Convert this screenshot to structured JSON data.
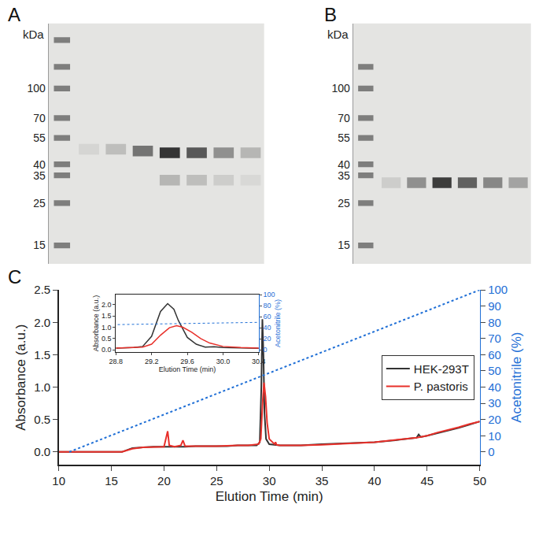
{
  "chart_data": [
    {
      "panel": "A",
      "type": "gel",
      "ylabel": "kDa",
      "log": "y",
      "ylim": [
        12,
        220
      ],
      "yticks": [
        15,
        25,
        35,
        40,
        55,
        70,
        100
      ],
      "tick_labels": "y",
      "lanes": 8,
      "color": "#2a2a2a",
      "ladder": [
        15,
        25,
        35,
        40,
        55,
        70,
        100,
        130,
        180
      ],
      "bands": [
        {
          "lane": 1,
          "kDa": 48,
          "intensity": 0.08
        },
        {
          "lane": 2,
          "kDa": 48,
          "intensity": 0.2
        },
        {
          "lane": 3,
          "kDa": 47,
          "intensity": 0.6
        },
        {
          "lane": 4,
          "kDa": 46,
          "intensity": 0.95
        },
        {
          "lane": 5,
          "kDa": 46,
          "intensity": 0.75
        },
        {
          "lane": 6,
          "kDa": 46,
          "intensity": 0.45
        },
        {
          "lane": 7,
          "kDa": 46,
          "intensity": 0.25
        },
        {
          "lane": 4,
          "kDa": 33,
          "intensity": 0.25
        },
        {
          "lane": 5,
          "kDa": 33,
          "intensity": 0.2
        },
        {
          "lane": 6,
          "kDa": 33,
          "intensity": 0.12
        },
        {
          "lane": 7,
          "kDa": 33,
          "intensity": 0.06
        }
      ]
    },
    {
      "panel": "B",
      "type": "gel",
      "ylabel": "kDa",
      "log": "y",
      "ylim": [
        12,
        220
      ],
      "yticks": [
        15,
        25,
        35,
        40,
        55,
        70,
        100
      ],
      "tick_labels": "y",
      "lanes": 7,
      "color": "#2a2a2a",
      "ladder": [
        15,
        25,
        35,
        40,
        55,
        70,
        100,
        130
      ],
      "bands": [
        {
          "lane": 1,
          "kDa": 32,
          "intensity": 0.12
        },
        {
          "lane": 2,
          "kDa": 32,
          "intensity": 0.45
        },
        {
          "lane": 3,
          "kDa": 32,
          "intensity": 0.9
        },
        {
          "lane": 4,
          "kDa": 32,
          "intensity": 0.7
        },
        {
          "lane": 5,
          "kDa": 32,
          "intensity": 0.5
        },
        {
          "lane": 6,
          "kDa": 32,
          "intensity": 0.35
        }
      ]
    },
    {
      "panel": "C",
      "type": "line",
      "xlabel": "Elution Time (min)",
      "ylabel": "Absorbance (a.u.)",
      "y2label": "Acetonitrile (%)",
      "xlim": [
        10,
        50
      ],
      "xticks": [
        10,
        15,
        20,
        25,
        30,
        35,
        40,
        45,
        50
      ],
      "ylim": [
        -0.2,
        2.5
      ],
      "yticks": [
        {
          "value": 0,
          "label": "0.0"
        },
        {
          "value": 0.5,
          "label": "0.5"
        },
        {
          "value": 1,
          "label": "1.0"
        },
        {
          "value": 1.5,
          "label": "1.5"
        },
        {
          "value": 2,
          "label": "2.0"
        },
        {
          "value": 2.5,
          "label": "2.5"
        }
      ],
      "y2lim": [
        -8,
        100
      ],
      "y2ticks": [
        0,
        10,
        20,
        30,
        40,
        50,
        60,
        70,
        80,
        90,
        100
      ],
      "legend": "right",
      "series": [
        {
          "name": "HEK-293T",
          "color": "#333333",
          "x": [
            10,
            15,
            16,
            16.5,
            17,
            18,
            19,
            20,
            21,
            22,
            23,
            24,
            25,
            26,
            27,
            28,
            28.8,
            29.1,
            29.25,
            29.35,
            29.45,
            29.55,
            29.7,
            30,
            30.5,
            31,
            32,
            33,
            35,
            37,
            40,
            42,
            43,
            44,
            44.2,
            44.4,
            45,
            46,
            47,
            48,
            49,
            50
          ],
          "values": [
            0,
            0,
            0,
            0.03,
            0.06,
            0.07,
            0.08,
            0.08,
            0.08,
            0.08,
            0.09,
            0.09,
            0.09,
            0.09,
            0.1,
            0.1,
            0.1,
            0.15,
            1.0,
            2.05,
            1.5,
            0.6,
            0.2,
            0.12,
            0.11,
            0.1,
            0.1,
            0.1,
            0.12,
            0.13,
            0.15,
            0.18,
            0.2,
            0.22,
            0.27,
            0.23,
            0.25,
            0.29,
            0.33,
            0.37,
            0.42,
            0.47
          ]
        },
        {
          "name": "P. pastoris",
          "color": "#e8302a",
          "x": [
            10,
            15,
            16,
            17,
            18,
            20,
            20.2,
            20.35,
            20.5,
            21,
            21.6,
            21.8,
            22,
            23,
            25,
            27,
            28,
            29,
            29.2,
            29.35,
            29.5,
            29.65,
            29.8,
            30,
            30.5,
            30.6,
            30.7,
            31,
            33,
            35,
            40,
            44,
            45,
            46,
            47,
            48,
            49,
            50
          ],
          "values": [
            0,
            0,
            0,
            0.05,
            0.07,
            0.08,
            0.2,
            0.32,
            0.1,
            0.08,
            0.1,
            0.18,
            0.09,
            0.09,
            0.09,
            0.1,
            0.1,
            0.12,
            0.2,
            0.7,
            1.07,
            0.85,
            0.45,
            0.2,
            0.12,
            0.15,
            0.11,
            0.1,
            0.1,
            0.11,
            0.15,
            0.22,
            0.25,
            0.3,
            0.34,
            0.38,
            0.43,
            0.47
          ]
        }
      ],
      "gradient": {
        "axis": "y2",
        "color": "#1f6fd6",
        "line_style": "dot",
        "x": [
          11,
          50
        ],
        "values": [
          0,
          100
        ]
      }
    },
    {
      "type": "line",
      "xlabel": "Elution Time (min)",
      "ylabel": "Absorbance (a.u.)",
      "y2label": "Acetonitrile (%)",
      "xlim": [
        28.8,
        30.4
      ],
      "xticks": [
        28.8,
        29.2,
        29.6,
        {
          "value": 30,
          "label": "30.0"
        },
        30.4
      ],
      "ylim": [
        -0.1,
        2.45
      ],
      "yticks": [
        {
          "value": 0,
          "label": "0.0"
        },
        {
          "value": 0.5,
          "label": "0.5"
        },
        {
          "value": 1,
          "label": "1.0"
        },
        {
          "value": 1.5,
          "label": "1.5"
        },
        {
          "value": 2,
          "label": "2.0"
        }
      ],
      "y2lim": [
        -4,
        100
      ],
      "y2ticks": [
        0,
        20,
        40,
        60,
        80,
        100
      ],
      "series": [
        {
          "color": "#333333",
          "x": [
            28.8,
            29.0,
            29.1,
            29.2,
            29.3,
            29.38,
            29.45,
            29.5,
            29.6,
            29.7,
            29.8,
            29.9,
            30.0,
            30.2,
            30.4
          ],
          "values": [
            0.08,
            0.1,
            0.15,
            0.6,
            1.7,
            2.05,
            1.8,
            1.3,
            0.55,
            0.25,
            0.12,
            0.14,
            0.1,
            0.08,
            0.07
          ]
        },
        {
          "color": "#e8302a",
          "x": [
            28.8,
            29.1,
            29.2,
            29.3,
            29.4,
            29.48,
            29.55,
            29.65,
            29.75,
            29.85,
            30.0,
            30.2,
            30.4
          ],
          "values": [
            0.08,
            0.12,
            0.25,
            0.65,
            0.98,
            1.07,
            1.0,
            0.78,
            0.5,
            0.3,
            0.15,
            0.1,
            0.08
          ]
        }
      ],
      "gradient": {
        "axis": "y2",
        "color": "#1f6fd6",
        "line_style": "dot",
        "x": [
          11,
          50
        ],
        "values": [
          0,
          100
        ]
      }
    }
  ]
}
